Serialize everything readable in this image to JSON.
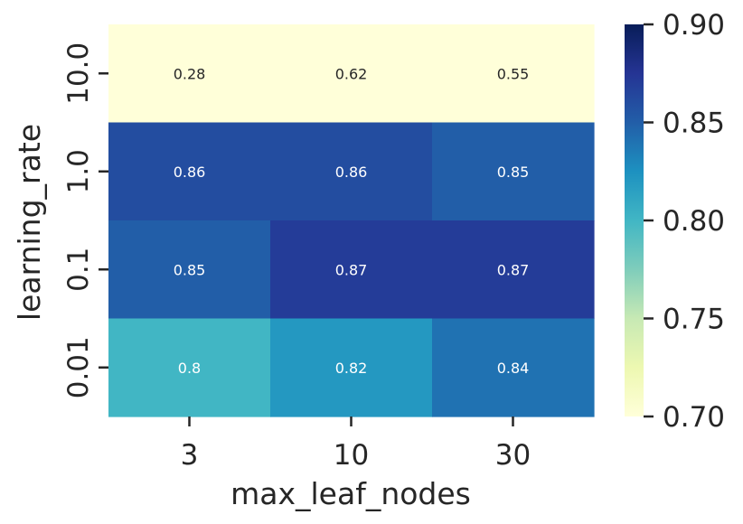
{
  "chart_data": {
    "type": "heatmap",
    "title": "",
    "xlabel": "max_leaf_nodes",
    "ylabel": "learning_rate",
    "x_categories": [
      "3",
      "10",
      "30"
    ],
    "y_categories": [
      "10.0",
      "1.0",
      "0.1",
      "0.01"
    ],
    "values": [
      [
        0.28,
        0.62,
        0.55
      ],
      [
        0.86,
        0.86,
        0.85
      ],
      [
        0.85,
        0.87,
        0.87
      ],
      [
        0.8,
        0.82,
        0.84
      ]
    ],
    "cell_labels": [
      [
        "0.28",
        "0.62",
        "0.55"
      ],
      [
        "0.86",
        "0.86",
        "0.85"
      ],
      [
        "0.85",
        "0.87",
        "0.87"
      ],
      [
        "0.8",
        "0.82",
        "0.84"
      ]
    ],
    "colormap": "YlGnBu",
    "color_range": [
      0.7,
      0.9
    ],
    "colorbar_ticks": [
      "0.70",
      "0.75",
      "0.80",
      "0.85",
      "0.90"
    ],
    "colormap_stops": [
      "#ffffd9",
      "#edf8b1",
      "#c7e9b4",
      "#7fcdbb",
      "#41b6c4",
      "#1d91c0",
      "#225ea8",
      "#253494",
      "#081d58"
    ],
    "legend": "colorbar-right"
  }
}
